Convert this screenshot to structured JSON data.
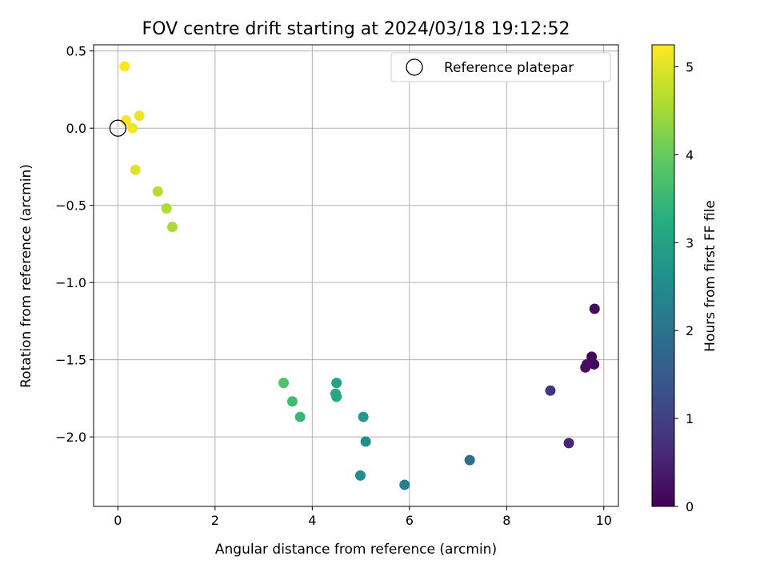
{
  "chart_data": {
    "type": "scatter",
    "title": "FOV centre drift starting at 2024/03/18 19:12:52",
    "xlabel": "Angular distance from reference (arcmin)",
    "ylabel": "Rotation from reference (arcmin)",
    "xlim": [
      -0.5,
      10.3
    ],
    "ylim": [
      -2.45,
      0.54
    ],
    "x_ticks": [
      0,
      2,
      4,
      6,
      8,
      10
    ],
    "x_tick_labels": [
      "0",
      "2",
      "4",
      "6",
      "8",
      "10"
    ],
    "y_ticks": [
      0.5,
      0.0,
      -0.5,
      -1.0,
      -1.5,
      -2.0
    ],
    "y_tick_labels": [
      "0.5",
      "0.0",
      "−0.5",
      "−1.0",
      "−1.5",
      "−2.0"
    ],
    "grid": true,
    "legend": {
      "position": "top-right",
      "entries": [
        {
          "label": "Reference platepar",
          "marker": "open-circle",
          "color": "#000000"
        }
      ]
    },
    "reference_point": {
      "x": 0,
      "y": 0
    },
    "colorbar": {
      "label": "Hours from first FF file",
      "colormap": "viridis",
      "range": [
        0,
        5.25
      ],
      "ticks": [
        0,
        1,
        2,
        3,
        4,
        5
      ],
      "tick_labels": [
        "0",
        "1",
        "2",
        "3",
        "4",
        "5"
      ]
    },
    "points": [
      {
        "x": 9.81,
        "y": -1.17,
        "hours": 0.15
      },
      {
        "x": 9.75,
        "y": -1.48,
        "hours": 0.1
      },
      {
        "x": 9.8,
        "y": -1.53,
        "hours": 0.1
      },
      {
        "x": 9.62,
        "y": -1.55,
        "hours": 0.2
      },
      {
        "x": 9.65,
        "y": -1.53,
        "hours": 0.2
      },
      {
        "x": 9.28,
        "y": -2.04,
        "hours": 0.55
      },
      {
        "x": 8.9,
        "y": -1.7,
        "hours": 0.8
      },
      {
        "x": 7.24,
        "y": -2.15,
        "hours": 1.85
      },
      {
        "x": 5.9,
        "y": -2.31,
        "hours": 2.25
      },
      {
        "x": 5.1,
        "y": -2.03,
        "hours": 2.6
      },
      {
        "x": 5.05,
        "y": -1.87,
        "hours": 2.75
      },
      {
        "x": 4.99,
        "y": -2.25,
        "hours": 2.55
      },
      {
        "x": 4.5,
        "y": -1.65,
        "hours": 3.0
      },
      {
        "x": 4.48,
        "y": -1.72,
        "hours": 3.1
      },
      {
        "x": 4.5,
        "y": -1.74,
        "hours": 3.15
      },
      {
        "x": 3.75,
        "y": -1.87,
        "hours": 3.5
      },
      {
        "x": 3.59,
        "y": -1.77,
        "hours": 3.6
      },
      {
        "x": 3.41,
        "y": -1.65,
        "hours": 3.75
      },
      {
        "x": 1.12,
        "y": -0.64,
        "hours": 4.55
      },
      {
        "x": 1.0,
        "y": -0.52,
        "hours": 4.6
      },
      {
        "x": 0.82,
        "y": -0.41,
        "hours": 4.65
      },
      {
        "x": 0.36,
        "y": -0.27,
        "hours": 5.0
      },
      {
        "x": 0.44,
        "y": 0.08,
        "hours": 5.1
      },
      {
        "x": 0.3,
        "y": 0.0,
        "hours": 5.15
      },
      {
        "x": 0.17,
        "y": 0.05,
        "hours": 5.2
      },
      {
        "x": 0.14,
        "y": 0.4,
        "hours": 5.25
      }
    ]
  }
}
